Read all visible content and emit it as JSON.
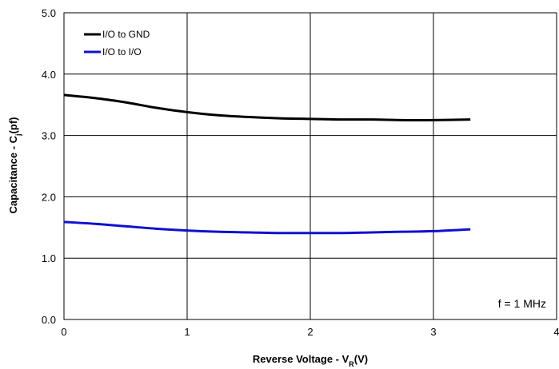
{
  "chart_data": {
    "type": "line",
    "title": "",
    "xlabel": {
      "main": "Reverse Voltage - V",
      "sub": "R",
      "tail": "(V)"
    },
    "ylabel": {
      "main": "Capacitance - C",
      "sub": "j",
      "tail": "(pf)"
    },
    "xlim": [
      0,
      4
    ],
    "ylim": [
      0,
      5
    ],
    "x_ticks": [
      "0",
      "1",
      "2",
      "3",
      "4"
    ],
    "y_ticks": [
      "0.0",
      "1.0",
      "2.0",
      "3.0",
      "4.0",
      "5.0"
    ],
    "grid": true,
    "legend_position": "top-left",
    "annotation": "f = 1 MHz",
    "series": [
      {
        "name": "I/O to GND",
        "color": "#000000",
        "x": [
          0,
          0.25,
          0.5,
          0.75,
          1.0,
          1.25,
          1.5,
          1.75,
          2.0,
          2.25,
          2.5,
          2.75,
          3.0,
          3.3
        ],
        "y": [
          3.66,
          3.61,
          3.54,
          3.45,
          3.38,
          3.33,
          3.3,
          3.28,
          3.27,
          3.26,
          3.26,
          3.25,
          3.25,
          3.26
        ]
      },
      {
        "name": "I/O to I/O",
        "color": "#1010d0",
        "x": [
          0,
          0.25,
          0.5,
          0.75,
          1.0,
          1.25,
          1.5,
          1.75,
          2.0,
          2.25,
          2.5,
          2.75,
          3.0,
          3.3
        ],
        "y": [
          1.59,
          1.56,
          1.52,
          1.48,
          1.45,
          1.43,
          1.42,
          1.41,
          1.41,
          1.41,
          1.42,
          1.43,
          1.44,
          1.47
        ]
      }
    ]
  }
}
